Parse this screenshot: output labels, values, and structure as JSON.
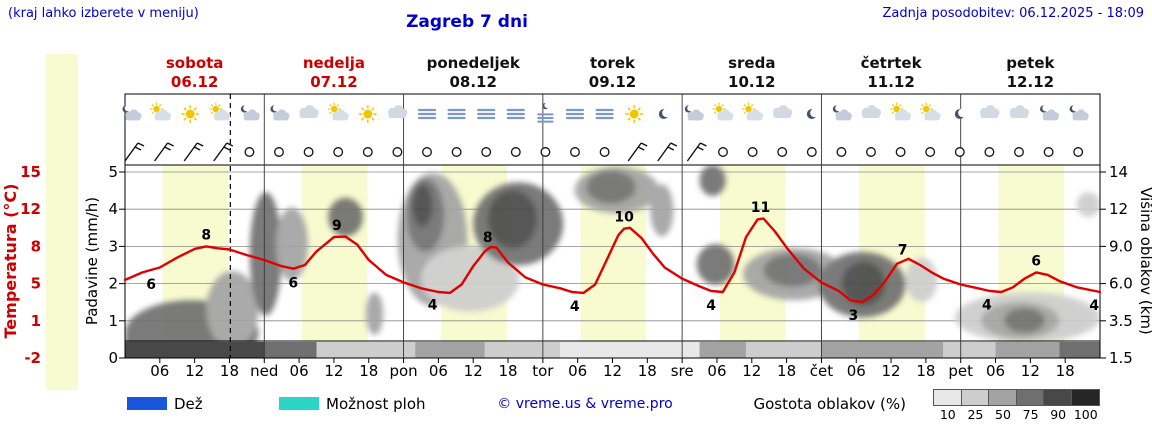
{
  "header": {
    "hint": "(kraj lahko izberete v meniju)",
    "title": "Zagreb 7 dni",
    "updated": "Zadnja posodobitev: 06.12.2025 - 18:09"
  },
  "legend": {
    "rain_label": "Dež",
    "showers_label": "Možnost ploh",
    "credit": "© vreme.us & vreme.pro",
    "clouds_label": "Gostota oblakov (%)",
    "scale_labels": [
      "10",
      "25",
      "50",
      "75",
      "90",
      "100"
    ],
    "rain_color": "#1a56db",
    "showers_color": "#2bd5c5"
  },
  "chart_data": {
    "type": "meteogram",
    "title": "Zagreb 7 dni",
    "x_hours_total": 168,
    "current_time_h": 18.15,
    "colors": {
      "red": "#cc0000",
      "blue": "#0000cc",
      "curve": "#e10000",
      "band": "#f8fad0",
      "sun": "#f5c400"
    },
    "density_colors": {
      "10": "#e8e8e8",
      "25": "#cdcdcd",
      "50": "#a3a3a3",
      "75": "#6f6f6f",
      "90": "#484848",
      "100": "#262626"
    },
    "days": [
      {
        "name": "sobota",
        "date": "06.12",
        "weekend": true
      },
      {
        "name": "nedelja",
        "date": "07.12",
        "weekend": true
      },
      {
        "name": "ponedeljek",
        "date": "08.12",
        "weekend": false
      },
      {
        "name": "torek",
        "date": "09.12",
        "weekend": false
      },
      {
        "name": "sreda",
        "date": "10.12",
        "weekend": false
      },
      {
        "name": "četrtek",
        "date": "11.12",
        "weekend": false
      },
      {
        "name": "petek",
        "date": "12.12",
        "weekend": false
      }
    ],
    "axes": {
      "temperature": {
        "label": "Temperatura (°C)",
        "ticks": [
          "15",
          "12",
          "8",
          "5",
          "1",
          "-2"
        ]
      },
      "precipitation": {
        "label": "Padavine (mm/h)",
        "ticks": [
          "5",
          "4",
          "3",
          "2",
          "1",
          "0"
        ]
      },
      "cloud_height": {
        "label": "Višina oblakov (km)",
        "ticks": [
          "14",
          "12",
          "9.0",
          "6.0",
          "3.5",
          "1.5"
        ]
      },
      "x_ticks": [
        {
          "h": 6,
          "l": "06"
        },
        {
          "h": 12,
          "l": "12"
        },
        {
          "h": 18,
          "l": "18"
        },
        {
          "h": 24,
          "l": "ned"
        },
        {
          "h": 30,
          "l": "06"
        },
        {
          "h": 36,
          "l": "12"
        },
        {
          "h": 42,
          "l": "18"
        },
        {
          "h": 48,
          "l": "pon"
        },
        {
          "h": 54,
          "l": "06"
        },
        {
          "h": 60,
          "l": "12"
        },
        {
          "h": 66,
          "l": "18"
        },
        {
          "h": 72,
          "l": "tor"
        },
        {
          "h": 78,
          "l": "06"
        },
        {
          "h": 84,
          "l": "12"
        },
        {
          "h": 90,
          "l": "18"
        },
        {
          "h": 96,
          "l": "sre"
        },
        {
          "h": 102,
          "l": "06"
        },
        {
          "h": 108,
          "l": "12"
        },
        {
          "h": 114,
          "l": "18"
        },
        {
          "h": 120,
          "l": "čet"
        },
        {
          "h": 126,
          "l": "06"
        },
        {
          "h": 132,
          "l": "12"
        },
        {
          "h": 138,
          "l": "18"
        },
        {
          "h": 144,
          "l": "pet"
        },
        {
          "h": 150,
          "l": "06"
        },
        {
          "h": 156,
          "l": "12"
        },
        {
          "h": 162,
          "l": "18"
        }
      ]
    },
    "daytime_bands": [
      [
        6.5,
        17.8
      ],
      [
        30.5,
        41.8
      ],
      [
        54.5,
        65.8
      ],
      [
        78.5,
        89.8
      ],
      [
        102.5,
        113.8
      ],
      [
        126.5,
        137.8
      ],
      [
        150.5,
        161.8
      ]
    ],
    "temperature_series": [
      [
        0,
        5.3
      ],
      [
        3,
        5.9
      ],
      [
        6,
        6.3
      ],
      [
        9,
        7.1
      ],
      [
        12,
        7.8
      ],
      [
        14,
        8.0
      ],
      [
        16,
        7.85
      ],
      [
        18,
        7.75
      ],
      [
        21,
        7.3
      ],
      [
        24,
        6.9
      ],
      [
        27,
        6.4
      ],
      [
        29,
        6.2
      ],
      [
        31,
        6.5
      ],
      [
        33,
        7.6
      ],
      [
        36,
        9.0
      ],
      [
        38,
        9.05
      ],
      [
        40,
        8.2
      ],
      [
        42,
        6.9
      ],
      [
        45,
        5.7
      ],
      [
        48,
        5.1
      ],
      [
        51,
        4.5
      ],
      [
        54,
        4.1
      ],
      [
        56,
        4.0
      ],
      [
        58,
        4.9
      ],
      [
        60,
        6.4
      ],
      [
        62,
        7.6
      ],
      [
        63,
        7.95
      ],
      [
        64,
        7.9
      ],
      [
        66,
        6.7
      ],
      [
        69,
        5.5
      ],
      [
        72,
        4.9
      ],
      [
        75,
        4.5
      ],
      [
        77,
        4.1
      ],
      [
        79,
        4.0
      ],
      [
        81,
        4.9
      ],
      [
        83,
        6.9
      ],
      [
        85,
        9.2
      ],
      [
        86,
        9.9
      ],
      [
        87,
        10.0
      ],
      [
        89,
        8.9
      ],
      [
        91,
        7.4
      ],
      [
        93,
        6.3
      ],
      [
        96,
        5.4
      ],
      [
        99,
        4.7
      ],
      [
        101,
        4.2
      ],
      [
        103,
        4.1
      ],
      [
        105,
        5.9
      ],
      [
        107,
        9.0
      ],
      [
        109,
        10.9
      ],
      [
        110,
        11.0
      ],
      [
        112,
        9.6
      ],
      [
        114,
        7.9
      ],
      [
        117,
        6.2
      ],
      [
        120,
        5.1
      ],
      [
        123,
        4.2
      ],
      [
        125,
        3.2
      ],
      [
        127,
        3.0
      ],
      [
        129,
        3.8
      ],
      [
        131,
        5.2
      ],
      [
        133,
        6.6
      ],
      [
        135,
        7.0
      ],
      [
        137,
        6.5
      ],
      [
        139,
        5.9
      ],
      [
        141,
        5.4
      ],
      [
        144,
        4.9
      ],
      [
        147,
        4.5
      ],
      [
        149,
        4.2
      ],
      [
        151,
        4.1
      ],
      [
        153,
        4.6
      ],
      [
        155,
        5.4
      ],
      [
        157,
        5.9
      ],
      [
        159,
        5.7
      ],
      [
        161,
        5.2
      ],
      [
        164,
        4.6
      ],
      [
        168,
        4.1
      ]
    ],
    "temperature_labels": [
      {
        "v": "6",
        "h": 4.5,
        "side": "below"
      },
      {
        "v": "8",
        "h": 14,
        "side": "above"
      },
      {
        "v": "6",
        "h": 29,
        "side": "below"
      },
      {
        "v": "9",
        "h": 36.5,
        "side": "above"
      },
      {
        "v": "4",
        "h": 53,
        "side": "below"
      },
      {
        "v": "8",
        "h": 62.5,
        "side": "above"
      },
      {
        "v": "4",
        "h": 77.5,
        "side": "below"
      },
      {
        "v": "10",
        "h": 86,
        "side": "above"
      },
      {
        "v": "4",
        "h": 101,
        "side": "below"
      },
      {
        "v": "11",
        "h": 109.5,
        "side": "above"
      },
      {
        "v": "3",
        "h": 125.5,
        "side": "below"
      },
      {
        "v": "7",
        "h": 134,
        "side": "above"
      },
      {
        "v": "4",
        "h": 148.5,
        "side": "below"
      },
      {
        "v": "6",
        "h": 157,
        "side": "above"
      },
      {
        "v": "4",
        "h": 167,
        "side": "below"
      }
    ],
    "cloud_regions": [
      {
        "h0": 0,
        "h1": 16,
        "top": 0.78,
        "bot": 1.02,
        "density": 90
      },
      {
        "h0": 0,
        "h1": 23,
        "top": 0.7,
        "bot": 1.04,
        "density": 75
      },
      {
        "h0": 14,
        "h1": 23,
        "top": 0.55,
        "bot": 0.95,
        "density": 50
      },
      {
        "h0": 21.5,
        "h1": 27,
        "top": 0.14,
        "bot": 0.78,
        "density": 75
      },
      {
        "h0": 26,
        "h1": 31.5,
        "top": 0.22,
        "bot": 0.6,
        "density": 50
      },
      {
        "h0": 35,
        "h1": 41,
        "top": 0.17,
        "bot": 0.37,
        "density": 75
      },
      {
        "h0": 41.5,
        "h1": 44.5,
        "top": 0.66,
        "bot": 0.88,
        "density": 50
      },
      {
        "h0": 47,
        "h1": 59,
        "top": 0.04,
        "bot": 0.73,
        "density": 50
      },
      {
        "h0": 48.5,
        "h1": 55,
        "top": 0.07,
        "bot": 0.45,
        "density": 75
      },
      {
        "h0": 49.5,
        "h1": 53,
        "top": 0.1,
        "bot": 0.32,
        "density": 90
      },
      {
        "h0": 51,
        "h1": 68,
        "top": 0.42,
        "bot": 0.76,
        "density": 25
      },
      {
        "h0": 60,
        "h1": 75.5,
        "top": 0.09,
        "bot": 0.52,
        "density": 75
      },
      {
        "h0": 62.5,
        "h1": 71,
        "top": 0.13,
        "bot": 0.43,
        "density": 90
      },
      {
        "h0": 77.5,
        "h1": 92,
        "top": 0.01,
        "bot": 0.25,
        "density": 50
      },
      {
        "h0": 79.5,
        "h1": 88,
        "top": 0.03,
        "bot": 0.2,
        "density": 75
      },
      {
        "h0": 90.5,
        "h1": 94.5,
        "top": 0.1,
        "bot": 0.37,
        "density": 50
      },
      {
        "h0": 99,
        "h1": 103.5,
        "top": 0.0,
        "bot": 0.16,
        "density": 75
      },
      {
        "h0": 98.5,
        "h1": 105,
        "top": 0.41,
        "bot": 0.62,
        "density": 75
      },
      {
        "h0": 106.5,
        "h1": 124,
        "top": 0.43,
        "bot": 0.7,
        "density": 50
      },
      {
        "h0": 110,
        "h1": 120,
        "top": 0.46,
        "bot": 0.63,
        "density": 75
      },
      {
        "h0": 119.5,
        "h1": 134.5,
        "top": 0.45,
        "bot": 0.79,
        "density": 75
      },
      {
        "h0": 123.5,
        "h1": 131,
        "top": 0.5,
        "bot": 0.73,
        "density": 90
      },
      {
        "h0": 134.5,
        "h1": 140,
        "top": 0.48,
        "bot": 0.71,
        "density": 25
      },
      {
        "h0": 143,
        "h1": 168,
        "top": 0.66,
        "bot": 0.92,
        "density": 25
      },
      {
        "h0": 147.5,
        "h1": 161,
        "top": 0.71,
        "bot": 0.9,
        "density": 50
      },
      {
        "h0": 151.5,
        "h1": 158.5,
        "top": 0.74,
        "bot": 0.87,
        "density": 75
      },
      {
        "h0": 164,
        "h1": 168,
        "top": 0.14,
        "bot": 0.27,
        "density": 25
      }
    ],
    "cloud_base_strip": [
      {
        "h0": 0,
        "h1": 24,
        "density": 90
      },
      {
        "h0": 24,
        "h1": 33,
        "density": 75
      },
      {
        "h0": 33,
        "h1": 50,
        "density": 25
      },
      {
        "h0": 50,
        "h1": 62,
        "density": 50
      },
      {
        "h0": 62,
        "h1": 75,
        "density": 25
      },
      {
        "h0": 75,
        "h1": 99,
        "density": 10
      },
      {
        "h0": 99,
        "h1": 107,
        "density": 50
      },
      {
        "h0": 107,
        "h1": 120,
        "density": 25
      },
      {
        "h0": 120,
        "h1": 141,
        "density": 50
      },
      {
        "h0": 141,
        "h1": 150,
        "density": 25
      },
      {
        "h0": 150,
        "h1": 161,
        "density": 50
      },
      {
        "h0": 161,
        "h1": 168,
        "density": 75
      }
    ],
    "wind_slots": [
      "barb",
      "barb",
      "barb",
      "barb",
      "calm",
      "calm",
      "calm",
      "calm",
      "calm",
      "calm",
      "calm",
      "calm",
      "calm",
      "calm",
      "calm",
      "calm",
      "calm",
      "barb",
      "barb",
      "barb",
      "calm",
      "calm",
      "calm",
      "calm",
      "calm",
      "calm",
      "calm",
      "calm",
      "calm",
      "calm",
      "calm",
      "calm",
      "calm"
    ],
    "weather_icons": [
      "moon-cloud",
      "sun-cloud",
      "sun",
      "sun-cloud",
      "moon-cloud",
      "moon-cloud",
      "cloud",
      "sun-cloud",
      "sun",
      "cloud",
      "fog",
      "fog",
      "fog",
      "fog",
      "fog-moon",
      "fog",
      "fog",
      "sun",
      "moon",
      "moon-cloud",
      "sun-cloud",
      "sun-cloud",
      "cloud",
      "moon",
      "moon-cloud",
      "cloud",
      "sun-cloud",
      "sun-cloud",
      "moon",
      "cloud",
      "cloud",
      "moon-cloud",
      "moon-cloud"
    ]
  }
}
